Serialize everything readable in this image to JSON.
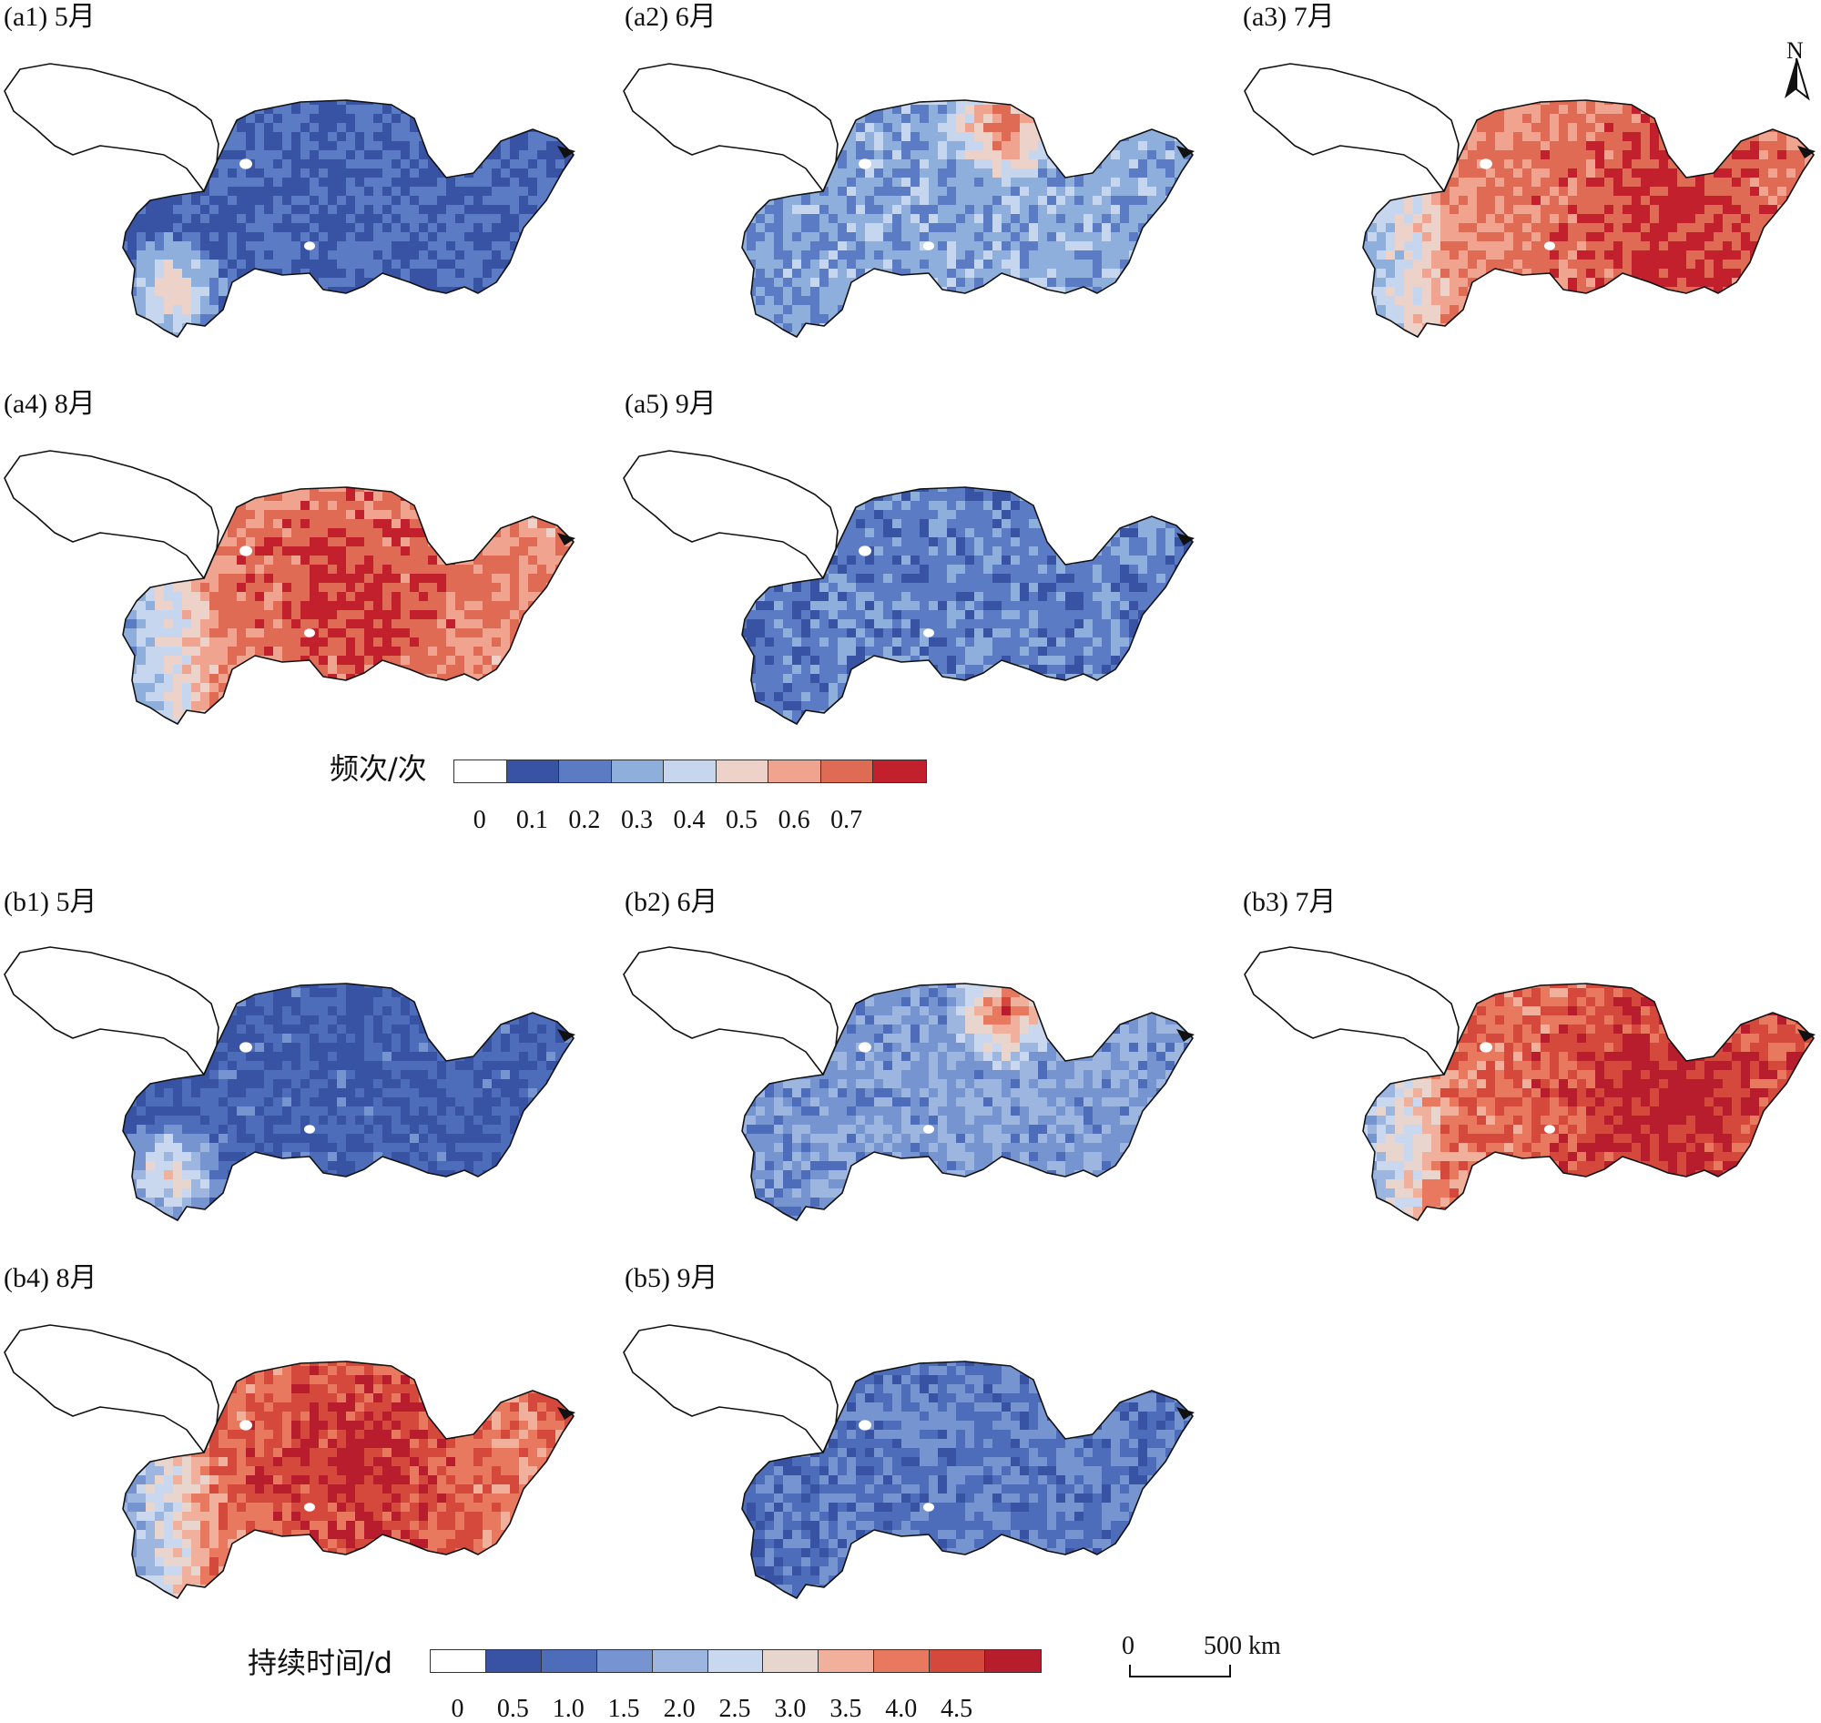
{
  "colors": {
    "zero": "#ffffff",
    "frequency_classes": [
      "#ffffff",
      "#3953a4",
      "#5b7cc4",
      "#8eaedc",
      "#c6d6ee",
      "#ecd2c8",
      "#f0a38e",
      "#e06b55",
      "#c3202e"
    ],
    "duration_classes": [
      "#ffffff",
      "#3953a4",
      "#4d6cba",
      "#7594d0",
      "#9cb6e0",
      "#c9d8ef",
      "#e8d5cd",
      "#f0b09c",
      "#e8795f",
      "#d5493c",
      "#b81d2d"
    ],
    "outline": "#111111"
  },
  "icons": {
    "north_arrow": "north-arrow-icon",
    "scale": "scale-bar-icon"
  },
  "panels": [
    {
      "id": "a1",
      "label": "(a1) 5月",
      "level": 0.12,
      "hotspot": "southwest"
    },
    {
      "id": "a2",
      "label": "(a2) 6月",
      "level": 0.3,
      "hotspot": "north"
    },
    {
      "id": "a3",
      "label": "(a3) 7月",
      "level": 0.75,
      "hotspot": "east"
    },
    {
      "id": "a4",
      "label": "(a4) 8月",
      "level": 0.72,
      "hotspot": "center"
    },
    {
      "id": "a5",
      "label": "(a5) 9月",
      "level": 0.2,
      "hotspot": "none"
    },
    {
      "id": "b1",
      "label": "(b1) 5月",
      "level": 0.1,
      "hotspot": "southwest"
    },
    {
      "id": "b2",
      "label": "(b2) 6月",
      "level": 0.28,
      "hotspot": "north"
    },
    {
      "id": "b3",
      "label": "(b3) 7月",
      "level": 0.78,
      "hotspot": "east"
    },
    {
      "id": "b4",
      "label": "(b4) 8月",
      "level": 0.74,
      "hotspot": "center"
    },
    {
      "id": "b5",
      "label": "(b5) 9月",
      "level": 0.18,
      "hotspot": "none"
    }
  ],
  "legend_frequency": {
    "title": "频次/次",
    "ticks": [
      "0",
      "0.1",
      "0.2",
      "0.3",
      "0.4",
      "0.5",
      "0.6",
      "0.7"
    ]
  },
  "legend_duration": {
    "title": "持续时间/d",
    "ticks": [
      "0",
      "0.5",
      "1.0",
      "1.5",
      "2.0",
      "2.5",
      "3.0",
      "3.5",
      "4.0",
      "4.5"
    ]
  },
  "north": {
    "letter": "N"
  },
  "scale": {
    "start": "0",
    "end": "500 km"
  }
}
